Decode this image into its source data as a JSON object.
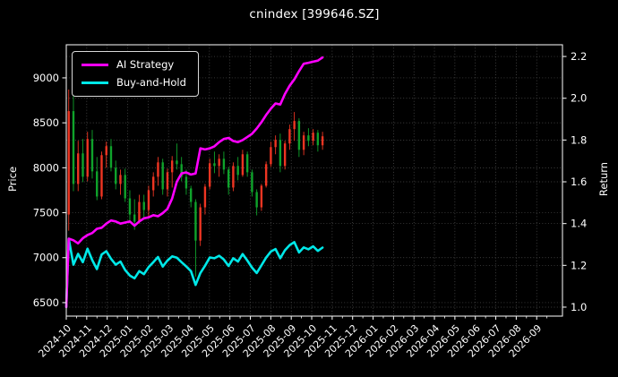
{
  "chart_data": {
    "type": "mixed",
    "subtypes": [
      "candlestick",
      "line"
    ],
    "title": "cnindex [399646.SZ]",
    "background_color": "#000000",
    "text_color": "#ffffff",
    "grid": {
      "show": true,
      "color": "#6a6a6a",
      "style": "dotted"
    },
    "legend": {
      "position": "upper left",
      "border_color": "#d8d8d8"
    },
    "x_axis": {
      "tick_labels": [
        "2024-10",
        "2024-11",
        "2024-12",
        "2025-01",
        "2025-02",
        "2025-03",
        "2025-04",
        "2025-05",
        "2025-06",
        "2025-07",
        "2025-08",
        "2025-09",
        "2025-10",
        "2025-11",
        "2025-12",
        "2026-01",
        "2026-02",
        "2026-03",
        "2026-04",
        "2026-05",
        "2026-06",
        "2026-07",
        "2026-08",
        "2026-09"
      ],
      "label_rotation_deg": -45,
      "months_span": 24.26
    },
    "left_axis": {
      "label": "Price",
      "tick_values": [
        6500,
        7000,
        7500,
        8000,
        8500,
        9000
      ],
      "range": [
        6350,
        9368
      ]
    },
    "right_axis": {
      "label": "Return",
      "tick_values": [
        1.0,
        1.2,
        1.4,
        1.6,
        1.8,
        2.0,
        2.2
      ],
      "tick_labels": [
        "1.0",
        "1.2",
        "1.4",
        "1.6",
        "1.8",
        "2.0",
        "2.2"
      ],
      "range": [
        0.957,
        2.256
      ]
    },
    "candles": {
      "color_convention": "china-red-up-green-down",
      "up_color": "#ef3522",
      "down_color": "#0fa32b",
      "t_start_months": 0.12,
      "t_step_months": 0.2298,
      "ohlc": [
        [
          7480,
          8870,
          7300,
          8630
        ],
        [
          8630,
          8870,
          7740,
          7820
        ],
        [
          7820,
          8300,
          7740,
          8160
        ],
        [
          8160,
          8320,
          7840,
          7900
        ],
        [
          7900,
          8400,
          7850,
          8320
        ],
        [
          8320,
          8420,
          7880,
          7960
        ],
        [
          7960,
          8120,
          7640,
          7680
        ],
        [
          7680,
          8180,
          7650,
          8140
        ],
        [
          8140,
          8290,
          8000,
          8240
        ],
        [
          8240,
          8320,
          7960,
          8000
        ],
        [
          8000,
          8080,
          7760,
          7820
        ],
        [
          7820,
          7980,
          7700,
          7920
        ],
        [
          7920,
          7990,
          7620,
          7660
        ],
        [
          7660,
          7750,
          7390,
          7480
        ],
        [
          7480,
          7650,
          7310,
          7400
        ],
        [
          7400,
          7700,
          7380,
          7620
        ],
        [
          7620,
          7700,
          7450,
          7530
        ],
        [
          7530,
          7800,
          7460,
          7750
        ],
        [
          7750,
          7950,
          7680,
          7900
        ],
        [
          7900,
          8120,
          7800,
          8060
        ],
        [
          8060,
          8100,
          7700,
          7760
        ],
        [
          7760,
          7990,
          7680,
          7950
        ],
        [
          7950,
          8130,
          7780,
          8080
        ],
        [
          8080,
          8270,
          7980,
          8040
        ],
        [
          8040,
          8120,
          7850,
          7900
        ],
        [
          7900,
          7980,
          7700,
          7770
        ],
        [
          7770,
          7800,
          7560,
          7620
        ],
        [
          7620,
          7650,
          6790,
          7190
        ],
        [
          7190,
          7600,
          7130,
          7560
        ],
        [
          7560,
          7820,
          7480,
          7790
        ],
        [
          7790,
          8100,
          7760,
          8050
        ],
        [
          8050,
          8180,
          7940,
          8020
        ],
        [
          8020,
          8150,
          7900,
          8100
        ],
        [
          8100,
          8180,
          7930,
          7980
        ],
        [
          7980,
          8010,
          7700,
          7780
        ],
        [
          7780,
          8060,
          7740,
          8020
        ],
        [
          8020,
          8120,
          7860,
          7920
        ],
        [
          7920,
          8200,
          7900,
          8150
        ],
        [
          8150,
          8180,
          7900,
          7950
        ],
        [
          7950,
          7980,
          7680,
          7730
        ],
        [
          7730,
          7760,
          7470,
          7560
        ],
        [
          7560,
          7820,
          7520,
          7800
        ],
        [
          7800,
          8070,
          7780,
          8040
        ],
        [
          8040,
          8290,
          8010,
          8230
        ],
        [
          8230,
          8360,
          8150,
          8310
        ],
        [
          8310,
          8380,
          7950,
          8020
        ],
        [
          8020,
          8300,
          7980,
          8270
        ],
        [
          8270,
          8480,
          8200,
          8430
        ],
        [
          8430,
          8620,
          8300,
          8520
        ],
        [
          8520,
          8550,
          8120,
          8200
        ],
        [
          8200,
          8400,
          8140,
          8360
        ],
        [
          8360,
          8440,
          8240,
          8300
        ],
        [
          8300,
          8430,
          8250,
          8390
        ],
        [
          8390,
          8420,
          8180,
          8250
        ],
        [
          8250,
          8400,
          8200,
          8350
        ]
      ]
    },
    "series": [
      {
        "name": "AI Strategy",
        "color": "#ff00ff",
        "axis": "right",
        "returns": [
          1.0,
          1.328,
          1.32,
          1.305,
          1.33,
          1.345,
          1.355,
          1.375,
          1.38,
          1.4,
          1.415,
          1.41,
          1.4,
          1.405,
          1.41,
          1.39,
          1.41,
          1.425,
          1.43,
          1.44,
          1.435,
          1.45,
          1.47,
          1.52,
          1.6,
          1.64,
          1.645,
          1.635,
          1.64,
          1.76,
          1.755,
          1.76,
          1.77,
          1.79,
          1.805,
          1.81,
          1.795,
          1.79,
          1.8,
          1.815,
          1.83,
          1.855,
          1.885,
          1.92,
          1.95,
          1.975,
          1.97,
          2.02,
          2.06,
          2.09,
          2.13,
          2.165,
          2.17,
          2.175,
          2.18,
          2.195
        ]
      },
      {
        "name": "Buy-and-Hold",
        "color": "#00e8e8",
        "axis": "right",
        "returns": [
          1.0,
          1.328,
          1.203,
          1.255,
          1.215,
          1.28,
          1.225,
          1.182,
          1.252,
          1.268,
          1.231,
          1.203,
          1.218,
          1.178,
          1.151,
          1.138,
          1.172,
          1.158,
          1.192,
          1.215,
          1.24,
          1.194,
          1.223,
          1.243,
          1.237,
          1.215,
          1.195,
          1.172,
          1.106,
          1.163,
          1.198,
          1.238,
          1.234,
          1.246,
          1.228,
          1.197,
          1.234,
          1.218,
          1.254,
          1.223,
          1.189,
          1.163,
          1.2,
          1.237,
          1.266,
          1.278,
          1.234,
          1.272,
          1.297,
          1.311,
          1.262,
          1.286,
          1.277,
          1.291,
          1.269,
          1.285
        ]
      }
    ]
  }
}
